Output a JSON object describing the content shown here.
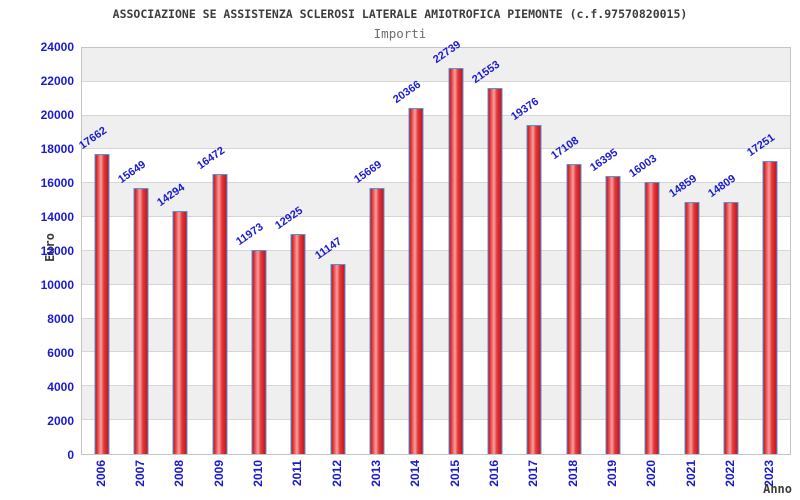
{
  "chart_data": {
    "type": "bar",
    "title": "ASSOCIAZIONE SE ASSISTENZA SCLEROSI LATERALE AMIOTROFICA PIEMONTE (c.f.97570820015)",
    "subtitle": "Importi",
    "xlabel": "Anno",
    "ylabel": "Euro",
    "categories": [
      "2006",
      "2007",
      "2008",
      "2009",
      "2010",
      "2011",
      "2012",
      "2013",
      "2014",
      "2015",
      "2016",
      "2017",
      "2018",
      "2019",
      "2020",
      "2021",
      "2022",
      "2023"
    ],
    "values": [
      17662,
      15649,
      14294,
      16472,
      11973,
      12925,
      11147,
      15669,
      20366,
      22739,
      21553,
      19376,
      17108,
      16395,
      16003,
      14859,
      14809,
      17251
    ],
    "ylim": [
      0,
      24000
    ],
    "ytick_step": 2000,
    "grid": "horizontal",
    "legend": "none",
    "band_pattern": "alternating gray/white per 2000",
    "value_label_rotation_deg": -35,
    "x_label_rotation_deg": -90,
    "colors": {
      "title": "#3c3c3c",
      "subtitle": "#6e6e6e",
      "tick_label": "#1a1acf",
      "value_label": "#1a1acf",
      "grid_line": "#d6d6d6",
      "band_fill": "#efefef",
      "plot_border": "#c4c4c4",
      "plot_bg": "#ffffff",
      "bar_border": "#4f97d7",
      "bar_edge": "#c3131f",
      "bar_mid": "#e43a3a",
      "bar_highlight": "#f5a0a0",
      "axis_label": "#3c3c3c"
    }
  }
}
